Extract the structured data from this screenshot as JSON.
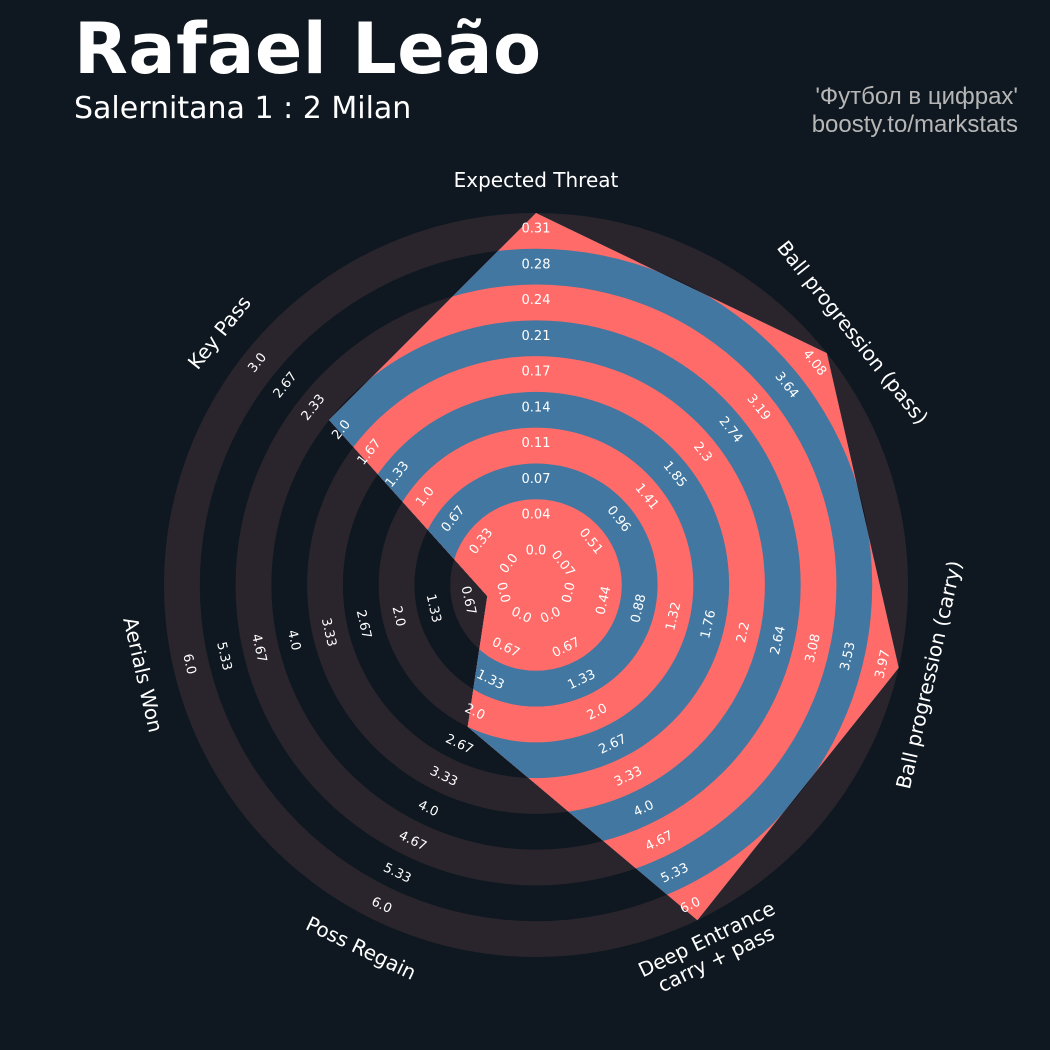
{
  "header": {
    "title": "Rafael Leão",
    "subtitle": "Salernitana 1 : 2 Milan",
    "credit_line1": "'Футбол в цифрах'",
    "credit_line2": "boosty.to/markstats"
  },
  "colors": {
    "background": "#0f1820",
    "outer_band": "#2a252c",
    "radar_fill": "#4177a0",
    "ring_color": "#ff6b68",
    "label_text": "#ffffff",
    "credit_text": "#b6b6b6"
  },
  "chart_data": {
    "type": "radar",
    "title": "Rafael Leão",
    "subtitle": "Salernitana 1 : 2 Milan",
    "params": [
      {
        "label": "Expected Threat",
        "value": 0.31,
        "ticks": [
          "0.0",
          "0.04",
          "0.07",
          "0.11",
          "0.14",
          "0.17",
          "0.21",
          "0.24",
          "0.28",
          "0.31"
        ]
      },
      {
        "label": "Ball progression (pass)",
        "value": 4.08,
        "ticks": [
          "0.07",
          "0.51",
          "0.96",
          "1.41",
          "1.85",
          "2.3",
          "2.74",
          "3.19",
          "3.64",
          "4.08"
        ]
      },
      {
        "label": "Ball progression (carry)",
        "value": 3.97,
        "ticks": [
          "0.0",
          "0.44",
          "0.88",
          "1.32",
          "1.76",
          "2.2",
          "2.64",
          "3.08",
          "3.53",
          "3.97"
        ]
      },
      {
        "label": "Deep Entrance\ncarry + pass",
        "value": 6.0,
        "ticks": [
          "0.0",
          "0.67",
          "1.33",
          "2.0",
          "2.67",
          "3.33",
          "4.0",
          "4.67",
          "5.33",
          "6.0"
        ]
      },
      {
        "label": "Poss Regain",
        "value": 2.0,
        "ticks": [
          "0.0",
          "0.67",
          "1.33",
          "2.0",
          "2.67",
          "3.33",
          "4.0",
          "4.67",
          "5.33",
          "6.0"
        ]
      },
      {
        "label": "Aerials Won",
        "value": 0.0,
        "ticks": [
          "0.0",
          "0.67",
          "1.33",
          "2.0",
          "2.67",
          "3.33",
          "4.0",
          "4.67",
          "5.33",
          "6.0"
        ]
      },
      {
        "label": "Key Pass",
        "value": 2.0,
        "ticks": [
          "0.0",
          "0.33",
          "0.67",
          "1.0",
          "1.33",
          "1.67",
          "2.0",
          "2.33",
          "2.67",
          "3.0"
        ]
      }
    ]
  }
}
